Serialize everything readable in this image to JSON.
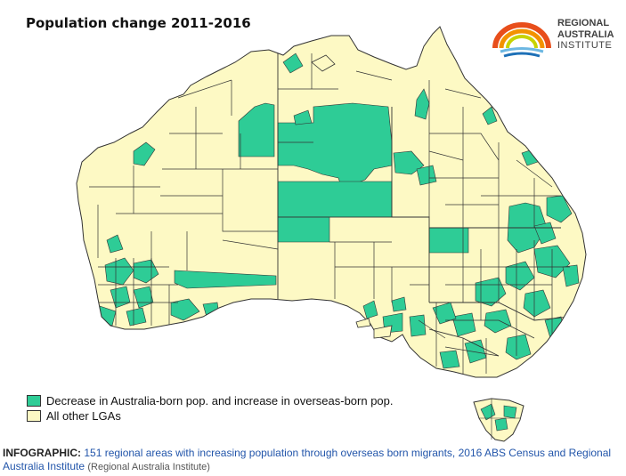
{
  "title": "Population change 2011-2016",
  "logo": {
    "line1": "REGIONAL",
    "line2": "AUSTRALIA",
    "line3": "INSTITUTE",
    "colors": [
      "#e84e1b",
      "#f39200",
      "#c7d300",
      "#6cb7e2",
      "#1d70b7"
    ]
  },
  "legend": [
    {
      "label": "Decrease in Australia-born pop. and increase in overseas-born pop.",
      "color": "#2ecc96"
    },
    {
      "label": "All other LGAs",
      "color": "#fdf9c4"
    }
  ],
  "colors": {
    "highlight": "#2ecc96",
    "other": "#fdf9c4",
    "border": "#333333"
  },
  "caption": {
    "tag": "INFOGRAPHIC:",
    "text": "151 regional areas with increasing population through overseas born migrants, 2016 ABS Census and Regional Australia Institute",
    "credit": "(Regional Australia Institute)"
  }
}
